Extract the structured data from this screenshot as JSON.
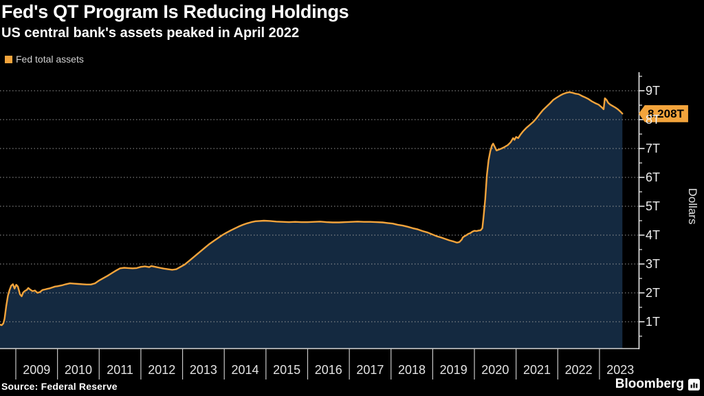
{
  "header": {
    "title": "Fed's QT Program Is Reducing Holdings",
    "subtitle": "US central bank's assets peaked in April 2022"
  },
  "legend": {
    "label": "Fed total assets",
    "swatch_color": "#f3a43c"
  },
  "chart_data": {
    "type": "area",
    "title": "Fed's QT Program Is Reducing Holdings",
    "subtitle": "US central bank's assets peaked in April 2022",
    "ylabel": "Dollars",
    "xlabel": "",
    "grid": "dashed horizontal lines at every 1T",
    "legend_position": "top-left",
    "x_tick_years": [
      "2009",
      "2010",
      "2011",
      "2012",
      "2013",
      "2014",
      "2015",
      "2016",
      "2017",
      "2018",
      "2019",
      "2020",
      "2021",
      "2022",
      "2023"
    ],
    "y_tick_labels": [
      "1T",
      "2T",
      "3T",
      "4T",
      "5T",
      "6T",
      "7T",
      "8T",
      "9T"
    ],
    "y_tick_values": [
      1,
      2,
      3,
      4,
      5,
      6,
      7,
      8,
      9
    ],
    "ylim": [
      0,
      9.6
    ],
    "xlim": [
      2008.62,
      2023.95
    ],
    "last_value_label": "8.208T",
    "last_value": 8.208,
    "units": "trillions of dollars",
    "line_color": "#f3a43c",
    "fill_color": "#142940",
    "series": [
      {
        "name": "Fed total assets",
        "points": [
          [
            2008.62,
            0.9
          ],
          [
            2008.66,
            0.88
          ],
          [
            2008.7,
            0.94
          ],
          [
            2008.73,
            1.1
          ],
          [
            2008.77,
            1.55
          ],
          [
            2008.81,
            1.9
          ],
          [
            2008.85,
            2.1
          ],
          [
            2008.89,
            2.25
          ],
          [
            2008.93,
            2.3
          ],
          [
            2008.97,
            2.15
          ],
          [
            2009.01,
            2.28
          ],
          [
            2009.05,
            2.22
          ],
          [
            2009.1,
            1.95
          ],
          [
            2009.14,
            1.88
          ],
          [
            2009.18,
            2.02
          ],
          [
            2009.22,
            2.07
          ],
          [
            2009.26,
            2.1
          ],
          [
            2009.3,
            2.17
          ],
          [
            2009.34,
            2.12
          ],
          [
            2009.4,
            2.06
          ],
          [
            2009.46,
            2.08
          ],
          [
            2009.52,
            2.0
          ],
          [
            2009.58,
            2.03
          ],
          [
            2009.64,
            2.1
          ],
          [
            2009.7,
            2.12
          ],
          [
            2009.76,
            2.14
          ],
          [
            2009.82,
            2.16
          ],
          [
            2009.88,
            2.19
          ],
          [
            2009.94,
            2.22
          ],
          [
            2010.0,
            2.23
          ],
          [
            2010.1,
            2.26
          ],
          [
            2010.2,
            2.3
          ],
          [
            2010.3,
            2.33
          ],
          [
            2010.4,
            2.32
          ],
          [
            2010.5,
            2.31
          ],
          [
            2010.6,
            2.3
          ],
          [
            2010.7,
            2.29
          ],
          [
            2010.8,
            2.29
          ],
          [
            2010.9,
            2.33
          ],
          [
            2011.0,
            2.43
          ],
          [
            2011.1,
            2.51
          ],
          [
            2011.2,
            2.59
          ],
          [
            2011.3,
            2.68
          ],
          [
            2011.4,
            2.77
          ],
          [
            2011.5,
            2.85
          ],
          [
            2011.6,
            2.87
          ],
          [
            2011.7,
            2.86
          ],
          [
            2011.8,
            2.85
          ],
          [
            2011.9,
            2.86
          ],
          [
            2012.0,
            2.9
          ],
          [
            2012.1,
            2.92
          ],
          [
            2012.2,
            2.89
          ],
          [
            2012.25,
            2.93
          ],
          [
            2012.35,
            2.9
          ],
          [
            2012.45,
            2.87
          ],
          [
            2012.55,
            2.84
          ],
          [
            2012.65,
            2.82
          ],
          [
            2012.75,
            2.8
          ],
          [
            2012.85,
            2.82
          ],
          [
            2012.95,
            2.9
          ],
          [
            2013.05,
            2.98
          ],
          [
            2013.15,
            3.1
          ],
          [
            2013.25,
            3.22
          ],
          [
            2013.35,
            3.34
          ],
          [
            2013.45,
            3.46
          ],
          [
            2013.55,
            3.58
          ],
          [
            2013.65,
            3.7
          ],
          [
            2013.75,
            3.8
          ],
          [
            2013.85,
            3.9
          ],
          [
            2013.95,
            4.0
          ],
          [
            2014.05,
            4.08
          ],
          [
            2014.15,
            4.16
          ],
          [
            2014.25,
            4.23
          ],
          [
            2014.35,
            4.3
          ],
          [
            2014.45,
            4.36
          ],
          [
            2014.55,
            4.41
          ],
          [
            2014.65,
            4.45
          ],
          [
            2014.75,
            4.48
          ],
          [
            2014.85,
            4.49
          ],
          [
            2014.95,
            4.5
          ],
          [
            2015.1,
            4.49
          ],
          [
            2015.25,
            4.47
          ],
          [
            2015.4,
            4.46
          ],
          [
            2015.55,
            4.45
          ],
          [
            2015.7,
            4.46
          ],
          [
            2015.85,
            4.45
          ],
          [
            2016.0,
            4.45
          ],
          [
            2016.15,
            4.46
          ],
          [
            2016.3,
            4.47
          ],
          [
            2016.45,
            4.45
          ],
          [
            2016.6,
            4.44
          ],
          [
            2016.75,
            4.44
          ],
          [
            2016.9,
            4.45
          ],
          [
            2017.05,
            4.46
          ],
          [
            2017.2,
            4.47
          ],
          [
            2017.35,
            4.46
          ],
          [
            2017.5,
            4.46
          ],
          [
            2017.65,
            4.45
          ],
          [
            2017.8,
            4.44
          ],
          [
            2017.92,
            4.42
          ],
          [
            2018.04,
            4.4
          ],
          [
            2018.16,
            4.36
          ],
          [
            2018.28,
            4.33
          ],
          [
            2018.4,
            4.29
          ],
          [
            2018.52,
            4.24
          ],
          [
            2018.64,
            4.2
          ],
          [
            2018.76,
            4.14
          ],
          [
            2018.88,
            4.09
          ],
          [
            2019.0,
            4.02
          ],
          [
            2019.1,
            3.96
          ],
          [
            2019.2,
            3.92
          ],
          [
            2019.3,
            3.87
          ],
          [
            2019.4,
            3.82
          ],
          [
            2019.5,
            3.78
          ],
          [
            2019.58,
            3.74
          ],
          [
            2019.64,
            3.76
          ],
          [
            2019.7,
            3.85
          ],
          [
            2019.72,
            3.92
          ],
          [
            2019.76,
            3.96
          ],
          [
            2019.8,
            3.99
          ],
          [
            2019.85,
            4.04
          ],
          [
            2019.9,
            4.07
          ],
          [
            2019.95,
            4.12
          ],
          [
            2020.0,
            4.15
          ],
          [
            2020.05,
            4.14
          ],
          [
            2020.1,
            4.16
          ],
          [
            2020.15,
            4.17
          ],
          [
            2020.19,
            4.24
          ],
          [
            2020.22,
            4.65
          ],
          [
            2020.26,
            5.25
          ],
          [
            2020.3,
            6.08
          ],
          [
            2020.34,
            6.6
          ],
          [
            2020.38,
            6.9
          ],
          [
            2020.42,
            7.1
          ],
          [
            2020.45,
            7.17
          ],
          [
            2020.49,
            7.05
          ],
          [
            2020.53,
            6.93
          ],
          [
            2020.58,
            6.96
          ],
          [
            2020.65,
            7.0
          ],
          [
            2020.72,
            7.05
          ],
          [
            2020.8,
            7.12
          ],
          [
            2020.87,
            7.22
          ],
          [
            2020.93,
            7.36
          ],
          [
            2020.96,
            7.3
          ],
          [
            2021.0,
            7.4
          ],
          [
            2021.05,
            7.36
          ],
          [
            2021.1,
            7.47
          ],
          [
            2021.17,
            7.6
          ],
          [
            2021.25,
            7.72
          ],
          [
            2021.33,
            7.82
          ],
          [
            2021.41,
            7.92
          ],
          [
            2021.49,
            8.05
          ],
          [
            2021.57,
            8.2
          ],
          [
            2021.65,
            8.34
          ],
          [
            2021.73,
            8.45
          ],
          [
            2021.81,
            8.56
          ],
          [
            2021.89,
            8.68
          ],
          [
            2021.97,
            8.76
          ],
          [
            2022.05,
            8.83
          ],
          [
            2022.13,
            8.89
          ],
          [
            2022.21,
            8.93
          ],
          [
            2022.28,
            8.95
          ],
          [
            2022.35,
            8.93
          ],
          [
            2022.42,
            8.9
          ],
          [
            2022.5,
            8.88
          ],
          [
            2022.58,
            8.82
          ],
          [
            2022.66,
            8.77
          ],
          [
            2022.74,
            8.71
          ],
          [
            2022.82,
            8.63
          ],
          [
            2022.9,
            8.57
          ],
          [
            2022.98,
            8.52
          ],
          [
            2023.06,
            8.42
          ],
          [
            2023.1,
            8.36
          ],
          [
            2023.13,
            8.74
          ],
          [
            2023.17,
            8.68
          ],
          [
            2023.21,
            8.58
          ],
          [
            2023.26,
            8.52
          ],
          [
            2023.32,
            8.47
          ],
          [
            2023.38,
            8.42
          ],
          [
            2023.44,
            8.36
          ],
          [
            2023.5,
            8.28
          ],
          [
            2023.55,
            8.208
          ]
        ]
      }
    ]
  },
  "footer": {
    "source": "Source: Federal Reserve",
    "brand": "Bloomberg"
  }
}
